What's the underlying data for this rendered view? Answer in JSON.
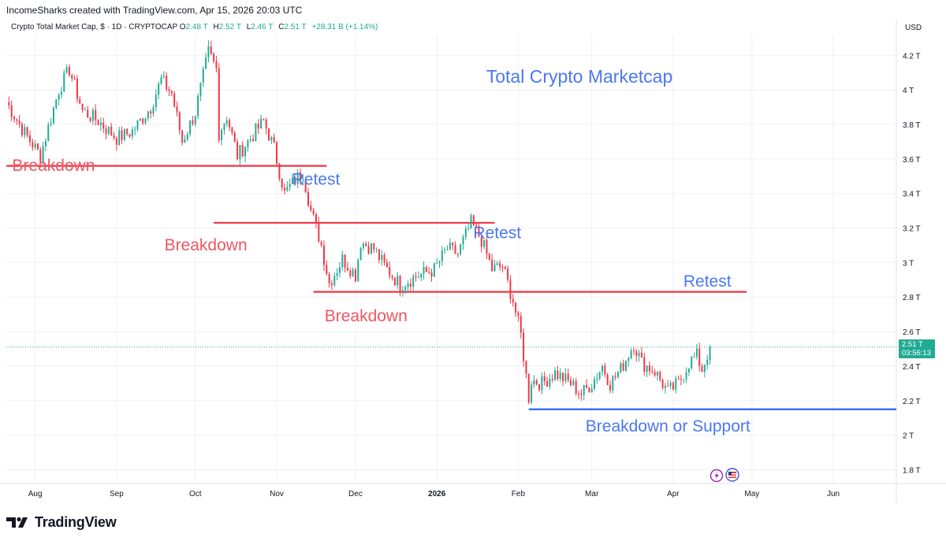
{
  "header": {
    "credit": "IncomeSharks created with TradingView.com, Apr 15, 2026 20:03 UTC"
  },
  "symbol": {
    "name": "Crypto Total Market Cap, $ · 1D · CRYPTOCAP",
    "open_label": "O",
    "open": "2.48 T",
    "high_label": "H",
    "high": "2.52 T",
    "low_label": "L",
    "low": "2.46 T",
    "close_label": "C",
    "close": "2.51 T",
    "change": "+28.31 B (+1.14%)"
  },
  "currency": "USD",
  "price_tag": {
    "value": "2.51 T",
    "countdown": "03:56:13"
  },
  "footer": {
    "brand": "TradingView"
  },
  "colors": {
    "up": "#22ab94",
    "down": "#f23645",
    "resistance_line": "#f23645",
    "support_line": "#2962ff",
    "annotation_red": "#f05560",
    "annotation_blue": "#4a78f0"
  },
  "chart_data": {
    "type": "candlestick",
    "title": "Total Crypto Marketcap",
    "y_unit": "T",
    "ylim": [
      1.72,
      4.32
    ],
    "xlim": [
      "2025-07-21",
      "2026-06-25"
    ],
    "y_ticks": [
      "4.2 T",
      "4 T",
      "3.8 T",
      "3.6 T",
      "3.4 T",
      "3.2 T",
      "3 T",
      "2.8 T",
      "2.6 T",
      "2.4 T",
      "2.2 T",
      "2 T",
      "1.8 T"
    ],
    "x_ticks": [
      {
        "label": "Aug",
        "date": "2025-08-01"
      },
      {
        "label": "Sep",
        "date": "2025-09-01"
      },
      {
        "label": "Oct",
        "date": "2025-10-01"
      },
      {
        "label": "Nov",
        "date": "2025-11-01"
      },
      {
        "label": "Dec",
        "date": "2025-12-01"
      },
      {
        "label": "2026",
        "date": "2026-01-01"
      },
      {
        "label": "Feb",
        "date": "2026-02-01"
      },
      {
        "label": "Mar",
        "date": "2026-03-01"
      },
      {
        "label": "Apr",
        "date": "2026-04-01"
      },
      {
        "label": "May",
        "date": "2026-05-01"
      },
      {
        "label": "Jun",
        "date": "2026-06-01"
      }
    ],
    "grid": true,
    "key_points": [
      {
        "date": "2025-07-21",
        "close": 3.93
      },
      {
        "date": "2025-07-28",
        "close": 3.75
      },
      {
        "date": "2025-08-03",
        "close": 3.62
      },
      {
        "date": "2025-08-10",
        "close": 4.0
      },
      {
        "date": "2025-08-14",
        "close": 4.12
      },
      {
        "date": "2025-08-19",
        "close": 3.88
      },
      {
        "date": "2025-08-25",
        "close": 3.82
      },
      {
        "date": "2025-09-01",
        "close": 3.72
      },
      {
        "date": "2025-09-07",
        "close": 3.76
      },
      {
        "date": "2025-09-14",
        "close": 3.9
      },
      {
        "date": "2025-09-18",
        "close": 4.06
      },
      {
        "date": "2025-09-22",
        "close": 3.98
      },
      {
        "date": "2025-09-26",
        "close": 3.7
      },
      {
        "date": "2025-10-01",
        "close": 3.87
      },
      {
        "date": "2025-10-06",
        "close": 4.22
      },
      {
        "date": "2025-10-09",
        "close": 4.12
      },
      {
        "date": "2025-10-10",
        "close": 3.75
      },
      {
        "date": "2025-10-13",
        "close": 3.85
      },
      {
        "date": "2025-10-17",
        "close": 3.62
      },
      {
        "date": "2025-10-22",
        "close": 3.72
      },
      {
        "date": "2025-10-27",
        "close": 3.82
      },
      {
        "date": "2025-10-31",
        "close": 3.66
      },
      {
        "date": "2025-11-04",
        "close": 3.4
      },
      {
        "date": "2025-11-08",
        "close": 3.48
      },
      {
        "date": "2025-11-11",
        "close": 3.52
      },
      {
        "date": "2025-11-14",
        "close": 3.3
      },
      {
        "date": "2025-11-18",
        "close": 3.1
      },
      {
        "date": "2025-11-21",
        "close": 2.88
      },
      {
        "date": "2025-11-26",
        "close": 3.02
      },
      {
        "date": "2025-12-01",
        "close": 2.93
      },
      {
        "date": "2025-12-03",
        "close": 3.12
      },
      {
        "date": "2025-12-08",
        "close": 3.08
      },
      {
        "date": "2025-12-12",
        "close": 2.98
      },
      {
        "date": "2025-12-18",
        "close": 2.87
      },
      {
        "date": "2025-12-24",
        "close": 2.92
      },
      {
        "date": "2025-12-31",
        "close": 2.96
      },
      {
        "date": "2026-01-05",
        "close": 3.08
      },
      {
        "date": "2026-01-09",
        "close": 3.05
      },
      {
        "date": "2026-01-14",
        "close": 3.23
      },
      {
        "date": "2026-01-18",
        "close": 3.13
      },
      {
        "date": "2026-01-22",
        "close": 2.96
      },
      {
        "date": "2026-01-26",
        "close": 2.98
      },
      {
        "date": "2026-01-30",
        "close": 2.78
      },
      {
        "date": "2026-02-02",
        "close": 2.58
      },
      {
        "date": "2026-02-05",
        "close": 2.22
      },
      {
        "date": "2026-02-06",
        "close": 2.32
      },
      {
        "date": "2026-02-10",
        "close": 2.3
      },
      {
        "date": "2026-02-15",
        "close": 2.36
      },
      {
        "date": "2026-02-21",
        "close": 2.3
      },
      {
        "date": "2026-02-25",
        "close": 2.24
      },
      {
        "date": "2026-03-01",
        "close": 2.3
      },
      {
        "date": "2026-03-05",
        "close": 2.4
      },
      {
        "date": "2026-03-08",
        "close": 2.3
      },
      {
        "date": "2026-03-12",
        "close": 2.38
      },
      {
        "date": "2026-03-17",
        "close": 2.53
      },
      {
        "date": "2026-03-20",
        "close": 2.42
      },
      {
        "date": "2026-03-25",
        "close": 2.37
      },
      {
        "date": "2026-03-30",
        "close": 2.25
      },
      {
        "date": "2026-04-03",
        "close": 2.3
      },
      {
        "date": "2026-04-07",
        "close": 2.42
      },
      {
        "date": "2026-04-10",
        "close": 2.46
      },
      {
        "date": "2026-04-12",
        "close": 2.38
      },
      {
        "date": "2026-04-15",
        "close": 2.51
      }
    ],
    "last_price": 2.51,
    "levels": [
      {
        "kind": "resistance",
        "y": 3.56,
        "x1": "2025-07-21",
        "x2": "2025-11-20"
      },
      {
        "kind": "resistance",
        "y": 3.23,
        "x1": "2025-10-08",
        "x2": "2026-01-23"
      },
      {
        "kind": "resistance",
        "y": 2.83,
        "x1": "2025-11-15",
        "x2": "2026-04-29"
      },
      {
        "kind": "support",
        "y": 2.15,
        "x1": "2026-02-05",
        "x2": "2026-06-25"
      }
    ],
    "annotations": [
      {
        "text": "Breakdown",
        "color": "red",
        "date": "2025-08-08",
        "y": 3.53
      },
      {
        "text": "Retest",
        "color": "blue",
        "date": "2025-11-16",
        "y": 3.45
      },
      {
        "text": "Breakdown",
        "color": "red",
        "date": "2025-10-05",
        "y": 3.07
      },
      {
        "text": "Retest",
        "color": "blue",
        "date": "2026-01-24",
        "y": 3.14
      },
      {
        "text": "Breakdown",
        "color": "red",
        "date": "2025-12-05",
        "y": 2.66
      },
      {
        "text": "Retest",
        "color": "blue",
        "date": "2026-04-14",
        "y": 2.86
      },
      {
        "text": "Breakdown or Support",
        "color": "blue",
        "date": "2026-03-30",
        "y": 2.02
      }
    ]
  }
}
